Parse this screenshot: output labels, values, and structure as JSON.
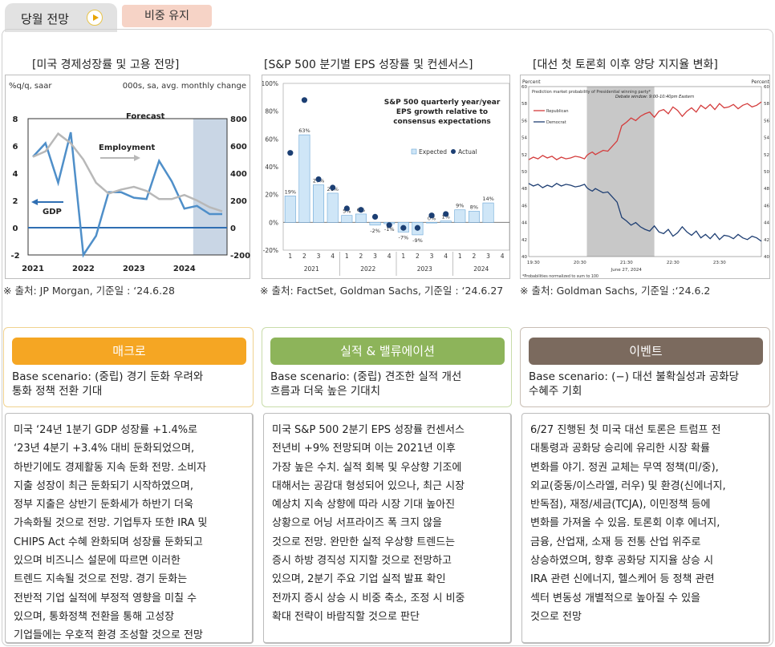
{
  "header": {
    "section_title": "당월 전망",
    "stance": "비중 유지"
  },
  "charts": [
    {
      "title": "[미국 경제성장률 및 고용 전망]",
      "source": "※ 출처: JP Morgan, 기준일 : ‘24.6.28",
      "chart_data": {
        "type": "line",
        "ylabel_left": "%q/q, saar",
        "ylabel_right": "000s, sa, avg. monthly change",
        "left_ylim": [
          -2,
          8
        ],
        "left_ticks": [
          "8",
          "6",
          "4",
          "2",
          "0",
          "-2"
        ],
        "right_ylim": [
          -200,
          800
        ],
        "right_ticks": [
          "800",
          "600",
          "400",
          "200",
          "0",
          "-200"
        ],
        "x_labels": [
          "2021",
          "2022",
          "2023",
          "2024"
        ],
        "annotations": {
          "forecast": "Forecast",
          "employment": "Employment",
          "gdp": "GDP"
        },
        "series": [
          {
            "name": "GDP",
            "axis": "left",
            "color": "#4f8fc9",
            "x": [
              0,
              1,
              2,
              3,
              4,
              5,
              6,
              7,
              8,
              9,
              10,
              11,
              12,
              13,
              14,
              15
            ],
            "values": [
              5.2,
              6.2,
              3.3,
              7.0,
              -2.0,
              -0.6,
              2.6,
              2.6,
              2.2,
              2.1,
              4.9,
              3.4,
              1.4,
              1.6,
              1.0,
              1.0
            ]
          },
          {
            "name": "Employment",
            "axis": "right",
            "color": "#b8b8b8",
            "x": [
              0,
              1,
              2,
              3,
              4,
              5,
              6,
              7,
              8,
              9,
              10,
              11,
              12,
              13,
              14,
              15
            ],
            "values": [
              520,
              560,
              690,
              620,
              500,
              330,
              250,
              280,
              300,
              270,
              210,
              210,
              240,
              200,
              150,
              120
            ]
          }
        ],
        "forecast_start_x": 12.7
      }
    },
    {
      "title": "[S&P 500 분기별 EPS 성장률 및 컨센서스]",
      "source": "※ 출처: FactSet, Goldman Sachs, 기준일 : ‘24.6.27",
      "chart_data": {
        "type": "bar",
        "title": "S&P 500 quarterly year/year EPS growth relative to consensus expectations",
        "title_lines": [
          "S&P 500 quarterly year/year",
          "EPS growth relative to",
          "consensus expectations"
        ],
        "legend": {
          "expected": "Expected",
          "actual": "Actual"
        },
        "ylim": [
          -20,
          100
        ],
        "y_ticks": [
          "100%",
          "80%",
          "60%",
          "40%",
          "20%",
          "0%",
          "-20%"
        ],
        "categories": [
          "1",
          "2",
          "3",
          "4",
          "1",
          "2",
          "3",
          "4",
          "1",
          "2",
          "3",
          "4",
          "1",
          "2",
          "3",
          "4"
        ],
        "year_labels": [
          "2021",
          "2022",
          "2023",
          "2024"
        ],
        "expected_values": [
          19,
          63,
          27,
          21,
          5,
          6,
          -2,
          -1,
          -7,
          -9,
          0,
          1,
          9,
          8,
          14
        ],
        "expected_labels": [
          "19%",
          "63%",
          "27%",
          "21%",
          "5%",
          "6%",
          "-2%",
          "-1%",
          "-7%",
          "-9%",
          "0%",
          "1%",
          "9%",
          "8%",
          "14%"
        ],
        "actual_values": [
          50,
          88,
          31,
          25,
          10,
          9,
          4,
          -2,
          -4,
          -4,
          5,
          6
        ]
      }
    },
    {
      "title": "[대선 첫 토론회 이후 양당 지지율 변화]",
      "source": "※ 출처: Goldman Sachs, 기준일 :‘24.6.2",
      "chart_data": {
        "type": "line",
        "ylabel_left": "Percent",
        "ylabel_right": "Percent",
        "legend_title": "Prediction market probability of Presidential winning party*",
        "debate_window": "Debate window: 9:00-10:40pm Eastern",
        "footnote": "*Probabilities normalized to sum to 100",
        "ylim": [
          40,
          60
        ],
        "y_ticks": [
          "60",
          "58",
          "56",
          "54",
          "52",
          "50",
          "48",
          "46",
          "44",
          "42",
          "40"
        ],
        "x_labels": [
          "19:30",
          "20:30",
          "21:30",
          "22:30",
          "23:30"
        ],
        "x_sub_label": "June 27, 2024",
        "series": [
          {
            "name": "Republican",
            "color": "#d43c3c",
            "x": [
              0,
              6,
              12,
              18,
              24,
              30,
              36,
              42,
              48,
              54,
              60,
              66,
              72,
              75,
              78,
              82,
              86,
              90,
              96,
              102,
              108,
              114,
              120,
              126,
              132,
              138,
              144,
              150,
              156,
              162,
              168,
              174,
              180,
              186,
              192,
              198,
              204,
              210,
              216,
              222,
              228,
              234,
              240,
              246,
              252,
              258,
              264,
              270,
              276,
              282,
              288,
              294,
              300
            ],
            "values": [
              51.4,
              51.7,
              51.5,
              51.9,
              51.6,
              51.8,
              51.4,
              51.7,
              51.5,
              51.6,
              51.8,
              51.7,
              51.5,
              51.9,
              52.1,
              52.3,
              52.0,
              52.2,
              52.5,
              52.4,
              53.0,
              53.6,
              55.4,
              55.8,
              56.3,
              56.0,
              56.5,
              56.8,
              57.0,
              56.4,
              57.1,
              57.3,
              56.8,
              57.6,
              57.2,
              56.5,
              57.1,
              57.5,
              57.0,
              57.8,
              57.4,
              57.9,
              57.3,
              58.0,
              57.5,
              57.6,
              57.9,
              57.4,
              57.8,
              58.0,
              57.6,
              57.8,
              58.2
            ]
          },
          {
            "name": "Democrat",
            "color": "#1f3f73",
            "x": [
              0,
              6,
              12,
              18,
              24,
              30,
              36,
              42,
              48,
              54,
              60,
              66,
              72,
              75,
              78,
              82,
              86,
              90,
              96,
              102,
              108,
              114,
              120,
              126,
              132,
              138,
              144,
              150,
              156,
              162,
              168,
              174,
              180,
              186,
              192,
              198,
              204,
              210,
              216,
              222,
              228,
              234,
              240,
              246,
              252,
              258,
              264,
              270,
              276,
              282,
              288,
              294,
              300
            ],
            "values": [
              48.6,
              48.3,
              48.5,
              48.1,
              48.4,
              48.2,
              48.6,
              48.3,
              48.5,
              48.4,
              48.2,
              48.3,
              48.5,
              48.1,
              47.9,
              47.7,
              48.0,
              47.8,
              47.5,
              47.6,
              47.0,
              46.4,
              44.6,
              44.2,
              43.7,
              44.0,
              43.5,
              43.2,
              43.0,
              43.6,
              42.9,
              42.7,
              43.2,
              42.4,
              42.8,
              43.5,
              42.9,
              42.5,
              43.0,
              42.2,
              42.6,
              42.1,
              42.7,
              42.0,
              42.5,
              42.4,
              42.1,
              42.6,
              42.2,
              42.0,
              42.4,
              42.2,
              41.8
            ]
          }
        ],
        "shade_x": [
          75,
          162
        ],
        "x_max": 300
      }
    }
  ],
  "cards": [
    {
      "header": "매크로",
      "scenario": [
        "Base scenario:  (중립) 경기 둔화 우려와",
        "통화 정책 전환 기대"
      ],
      "body": [
        "미국 ‘24년 1분기 GDP 성장률 +1.4%로",
        "‘23년 4분기 +3.4% 대비 둔화되었으며,",
        "하반기에도 경제활동 지속 둔화 전망. 소비자",
        "지출 성장이 최근 둔화되기 시작하였으며,",
        "정부 지출은 상반기 둔화세가 하반기 더욱",
        "가속화될 것으로 전망. 기업투자 또한 IRA 및",
        "CHIPS Act 수혜 완화되며 성장률 둔화되고",
        "있으며 비즈니스 설문에 따르면 이러한",
        "트렌드 지속될 것으로 전망. 경기 둔화는",
        "전반적 기업 실적에 부정적 영향을 미칠 수",
        "있으며, 통화정책 전환을 통해 고성장",
        "기업들에는 우호적 환경 조성할 것으로 전망"
      ]
    },
    {
      "header": "실적 & 밸류에이션",
      "scenario": [
        "Base scenario: (중립) 견조한 실적 개선",
        "흐름과 더욱 높은 기대치"
      ],
      "body": [
        "미국 S&P 500 2분기 EPS 성장률 컨센서스",
        "전년비 +9% 전망되며 이는 2021년 이후",
        "가장 높은 수치. 실적 회복 및 우상향 기조에",
        "대해서는 공감대 형성되어 있으나, 최근 시장",
        "예상치 지속 상향에 따라 시장 기대 높아진",
        "상황으로 어닝 서프라이즈 폭 크지 않을",
        "것으로 전망. 완만한 실적 우상향 트렌드는",
        "증시 하방 경직성 지지할 것으로 전망하고",
        "있으며, 2분기 주요 기업 실적 발표 확인",
        "전까지 증시 상승 시 비중 축소, 조정 시 비중",
        "확대 전략이 바람직할 것으로 판단"
      ]
    },
    {
      "header": "이벤트",
      "scenario": [
        "Base scenario: (−) 대선 불확실성과 공화당",
        "수혜주 기회"
      ],
      "body": [
        "6/27 진행된 첫 미국 대선 토론은 트럼프 전",
        "대통령과 공화당 승리에 유리한 시장 확률",
        "변화를 야기. 정권 교체는 무역 정책(미/중),",
        "외교(중동/이스라엘, 러우) 및 환경(신에너지,",
        "반독점), 재정/세금(TCJA), 이민정책 등에",
        "변화를 가져올 수 있음. 토론회 이후 에너지,",
        "금융, 산업재, 소재 등 전통 산업 위주로",
        "상승하였으며, 향후 공화당 지지율 상승 시",
        "IRA 관련 신에너지, 헬스케어 등 정책 관련",
        "섹터 변동성 개별적으로 높아질 수 있을",
        "것으로 전망"
      ]
    }
  ],
  "colors": {
    "macro": "#f5a623",
    "earnings": "#8db45a",
    "event": "#7b6a5e",
    "forecast_shade": "#c9d6e5",
    "expected_bar": "#cfe6f7",
    "actual_dot": "#1c3f73",
    "debate_shade": "#c8c8c8"
  }
}
